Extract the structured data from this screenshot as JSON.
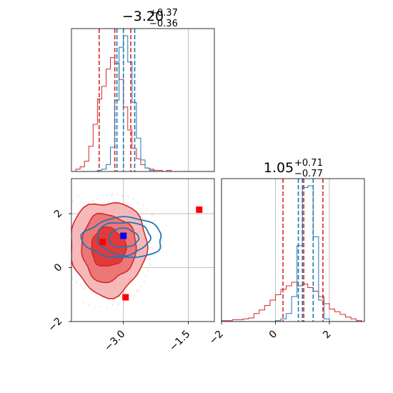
{
  "chart_data": [
    {
      "type": "histogram",
      "panel": "top-left marginal",
      "title": {
        "value": "−3.20",
        "plus": "+0.37",
        "minus": "−0.36"
      },
      "xlim": [
        -4.2,
        -0.9
      ],
      "grid": true,
      "series": [
        {
          "color": "#d62728",
          "median": -3.2,
          "lo": -3.56,
          "hi": -2.83,
          "bin_edges": [
            -4.2,
            -4.1,
            -4.0,
            -3.9,
            -3.8,
            -3.7,
            -3.6,
            -3.5,
            -3.4,
            -3.3,
            -3.2,
            -3.1,
            -3.0,
            -2.9,
            -2.8,
            -2.7,
            -2.6,
            -2.5,
            -2.4,
            -2.3,
            -2.2,
            -2.1,
            -2.0,
            -1.9,
            -1.8,
            -1.7,
            -1.6,
            -1.5,
            -1.4,
            -1.3,
            -1.2,
            -1.1,
            -1.0,
            -0.9
          ],
          "counts": [
            0,
            2,
            4,
            9,
            22,
            41,
            63,
            74,
            89,
            99,
            94,
            80,
            56,
            36,
            20,
            11,
            6,
            3,
            2,
            1,
            1,
            0,
            1,
            0,
            0,
            0,
            0,
            0,
            0,
            0,
            0,
            0,
            0
          ]
        },
        {
          "color": "#1f77b4",
          "median": -3.0,
          "lo": -3.15,
          "hi": -2.74,
          "bin_edges": [
            -4.2,
            -4.1,
            -4.0,
            -3.9,
            -3.8,
            -3.7,
            -3.6,
            -3.5,
            -3.4,
            -3.3,
            -3.2,
            -3.1,
            -3.0,
            -2.9,
            -2.8,
            -2.7,
            -2.6,
            -2.5,
            -2.4,
            -2.3,
            -2.2,
            -2.1,
            -2.0,
            -1.9,
            -1.8,
            -1.7,
            -1.6,
            -1.5,
            -1.4,
            -1.3,
            -1.2,
            -1.1,
            -1.0,
            -0.9
          ],
          "counts": [
            0,
            0,
            0,
            0,
            0,
            0,
            1,
            2,
            6,
            21,
            62,
            108,
            118,
            95,
            60,
            29,
            10,
            3,
            1,
            0,
            0,
            0,
            0,
            0,
            0,
            0,
            0,
            0,
            0,
            0,
            0,
            0,
            0
          ]
        }
      ]
    },
    {
      "type": "contour",
      "panel": "bottom-left joint",
      "xlim": [
        -4.2,
        -0.9
      ],
      "ylim": [
        -2.0,
        3.3
      ],
      "x_ticks": [
        -3.0,
        -1.5
      ],
      "x_tick_labels": [
        "−3.0",
        "−1.5"
      ],
      "y_ticks": [
        -2,
        0,
        2
      ],
      "y_tick_labels": [
        "−2",
        "0",
        "2"
      ],
      "grid": true,
      "series": [
        {
          "color": "#d62728",
          "filled": true,
          "center": [
            -3.35,
            0.75
          ],
          "radii": [
            [
              0.4,
              0.72
            ],
            [
              0.63,
              1.25
            ],
            [
              0.88,
              1.75
            ]
          ]
        },
        {
          "color": "#1f77b4",
          "filled": false,
          "center": [
            -3.0,
            1.1
          ],
          "radii": [
            [
              0.34,
              0.35
            ],
            [
              0.61,
              0.61
            ],
            [
              0.92,
              0.75
            ]
          ]
        }
      ],
      "markers": [
        {
          "color": "#ff0000",
          "x": -1.25,
          "y": 2.15
        },
        {
          "color": "#ff0000",
          "x": -3.48,
          "y": 0.95
        },
        {
          "color": "#ff0000",
          "x": -2.95,
          "y": -1.1
        },
        {
          "color": "#0000ff",
          "x": -3.0,
          "y": 1.18
        }
      ]
    },
    {
      "type": "histogram",
      "panel": "bottom-right marginal",
      "title": {
        "value": "1.05",
        "plus": "+0.71",
        "minus": "−0.77"
      },
      "xlim": [
        -2.0,
        3.3
      ],
      "x_ticks": [
        -2,
        0,
        2
      ],
      "x_tick_labels": [
        "−2",
        "0",
        "2"
      ],
      "grid": true,
      "series": [
        {
          "color": "#d62728",
          "median": 1.05,
          "lo": 0.28,
          "hi": 1.76,
          "bin_edges": [
            -2.0,
            -1.8,
            -1.6,
            -1.4,
            -1.2,
            -1.0,
            -0.8,
            -0.6,
            -0.4,
            -0.2,
            0.0,
            0.2,
            0.4,
            0.6,
            0.8,
            1.0,
            1.2,
            1.4,
            1.6,
            1.8,
            2.0,
            2.2,
            2.4,
            2.6,
            2.8,
            3.0,
            3.2
          ],
          "counts": [
            1,
            1,
            2,
            2,
            3,
            4,
            9,
            13,
            18,
            24,
            30,
            36,
            40,
            44,
            40,
            42,
            38,
            34,
            28,
            20,
            14,
            11,
            8,
            5,
            3,
            1
          ]
        },
        {
          "color": "#1f77b4",
          "median": 1.0,
          "lo": 0.85,
          "hi": 1.4,
          "bin_edges": [
            -2.0,
            -1.8,
            -1.6,
            -1.4,
            -1.2,
            -1.0,
            -0.8,
            -0.6,
            -0.4,
            -0.2,
            0.0,
            0.2,
            0.4,
            0.6,
            0.8,
            1.0,
            1.2,
            1.4,
            1.6,
            1.8,
            2.0,
            2.2,
            2.4,
            2.6,
            2.8,
            3.0,
            3.2
          ],
          "counts": [
            0,
            0,
            0,
            0,
            0,
            0,
            0,
            0,
            0,
            0,
            1,
            3,
            9,
            28,
            85,
            150,
            152,
            95,
            24,
            3,
            0,
            0,
            0,
            0,
            0,
            0
          ]
        }
      ]
    }
  ]
}
